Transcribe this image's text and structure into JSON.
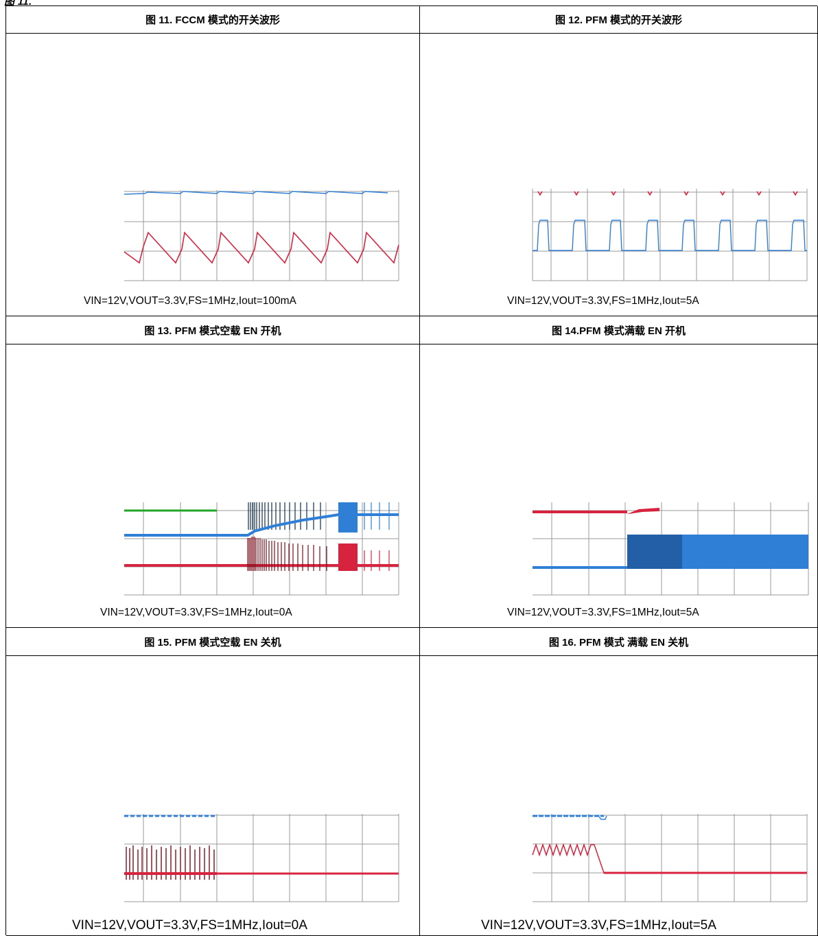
{
  "header_text": "图 11.",
  "figures": [
    {
      "caption": "图 11. FCCM 模式的开关波形",
      "condition": "VIN=12V,VOUT=3.3V,FS=1MHz,Iout=100mA"
    },
    {
      "caption": "图 12. PFM 模式的开关波形",
      "condition": "VIN=12V,VOUT=3.3V,FS=1MHz,Iout=5A"
    },
    {
      "caption": "图 13. PFM 模式空载 EN 开机",
      "condition": "VIN=12V,VOUT=3.3V,FS=1MHz,Iout=0A"
    },
    {
      "caption": "图 14.PFM 模式满载 EN 开机",
      "condition": "VIN=12V,VOUT=3.3V,FS=1MHz,Iout=5A"
    },
    {
      "caption": "图 15. PFM 模式空载 EN 关机",
      "condition": "VIN=12V,VOUT=3.3V,FS=1MHz,Iout=0A"
    },
    {
      "caption": "图 16. PFM 模式 满载 EN 关机",
      "condition": "VIN=12V,VOUT=3.3V,FS=1MHz,Iout=5A"
    }
  ],
  "colors": {
    "trace_blue": "#2f7fd6",
    "trace_red": "#d8233f",
    "trace_darkred": "#7a0d1c",
    "trace_green": "#22a526",
    "trace_navy": "#0d2b4d",
    "grid": "#9a9a9a"
  }
}
